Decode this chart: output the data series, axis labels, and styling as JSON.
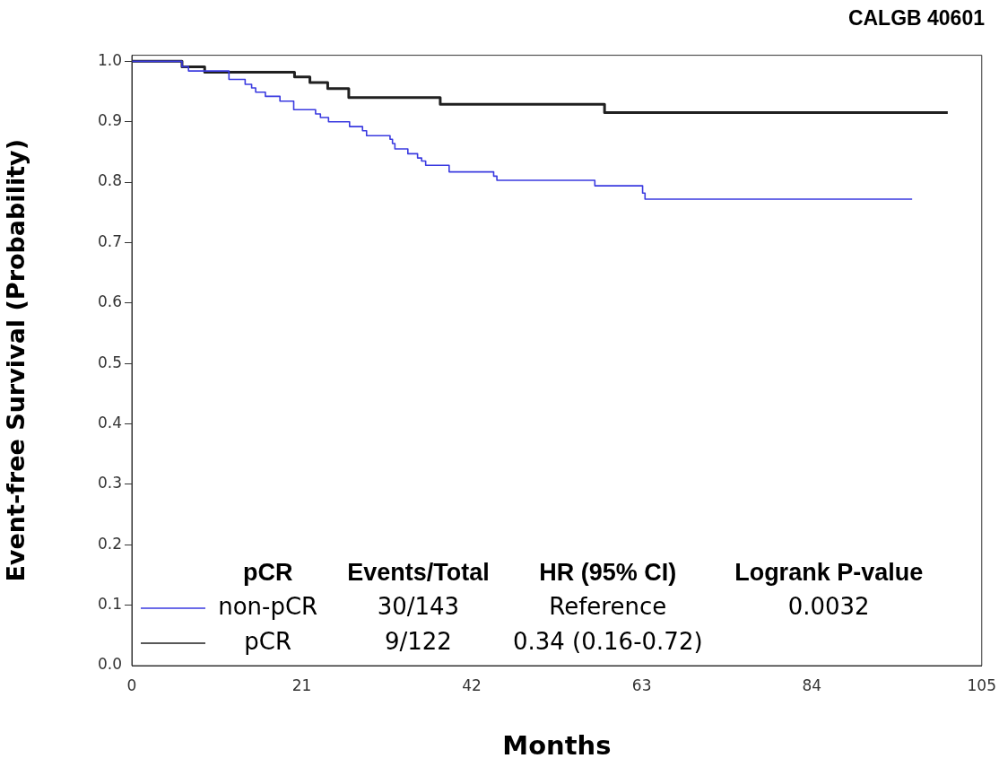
{
  "chart_data": {
    "type": "step",
    "title": "CALGB 40601",
    "xlabel": "Months",
    "ylabel": "Event-free Survival (Probability)",
    "xlim": [
      0,
      105
    ],
    "xticks": [
      0,
      21,
      42,
      63,
      84,
      105
    ],
    "ylim": [
      0,
      1.01
    ],
    "yticks": [
      {
        "value": 0,
        "label": "0.0"
      },
      {
        "value": 0.1,
        "label": "0.1"
      },
      {
        "value": 0.2,
        "label": "0.2"
      },
      {
        "value": 0.3,
        "label": "0.3"
      },
      {
        "value": 0.4,
        "label": "0.4"
      },
      {
        "value": 0.5,
        "label": "0.5"
      },
      {
        "value": 0.6,
        "label": "0.6"
      },
      {
        "value": 0.7,
        "label": "0.7"
      },
      {
        "value": 0.8,
        "label": "0.8"
      },
      {
        "value": 0.9,
        "label": "0.9"
      },
      {
        "value": 1,
        "label": "1.0"
      }
    ],
    "grid": false,
    "legend": "bottom left",
    "legend_title": "pCR",
    "marker": "none",
    "series": [
      {
        "name": "non-pCR",
        "color": "#3a3ae0",
        "x": [
          0,
          6.2,
          7,
          12,
          14,
          14.8,
          15.3,
          16.5,
          18.3,
          20,
          22.7,
          23.3,
          24.3,
          26.9,
          28.5,
          29,
          31.9,
          32.2,
          32.5,
          34.1,
          35.3,
          35.8,
          36.3,
          39.2,
          44.7,
          45.1,
          57.2,
          63.1,
          63.4,
          96.4
        ],
        "values": [
          1,
          0.991,
          0.984,
          0.97,
          0.962,
          0.956,
          0.949,
          0.942,
          0.934,
          0.92,
          0.913,
          0.907,
          0.9,
          0.892,
          0.885,
          0.877,
          0.871,
          0.864,
          0.855,
          0.847,
          0.84,
          0.835,
          0.828,
          0.817,
          0.81,
          0.803,
          0.794,
          0.782,
          0.772,
          0.772
        ]
      },
      {
        "name": "pCR",
        "color": "#202020",
        "x": [
          0,
          6.2,
          9,
          20.1,
          22,
          24.2,
          26.8,
          38.1,
          58.4,
          100.8
        ],
        "values": [
          1,
          0.991,
          0.982,
          0.974,
          0.965,
          0.955,
          0.94,
          0.929,
          0.915,
          0.915
        ]
      }
    ],
    "annotations": [
      "Events/Total",
      "30/143",
      "9/122",
      "HR (95% CI)",
      "Reference",
      "0.34 (0.16-0.72)",
      "Logrank P-value",
      "0.0032"
    ]
  }
}
